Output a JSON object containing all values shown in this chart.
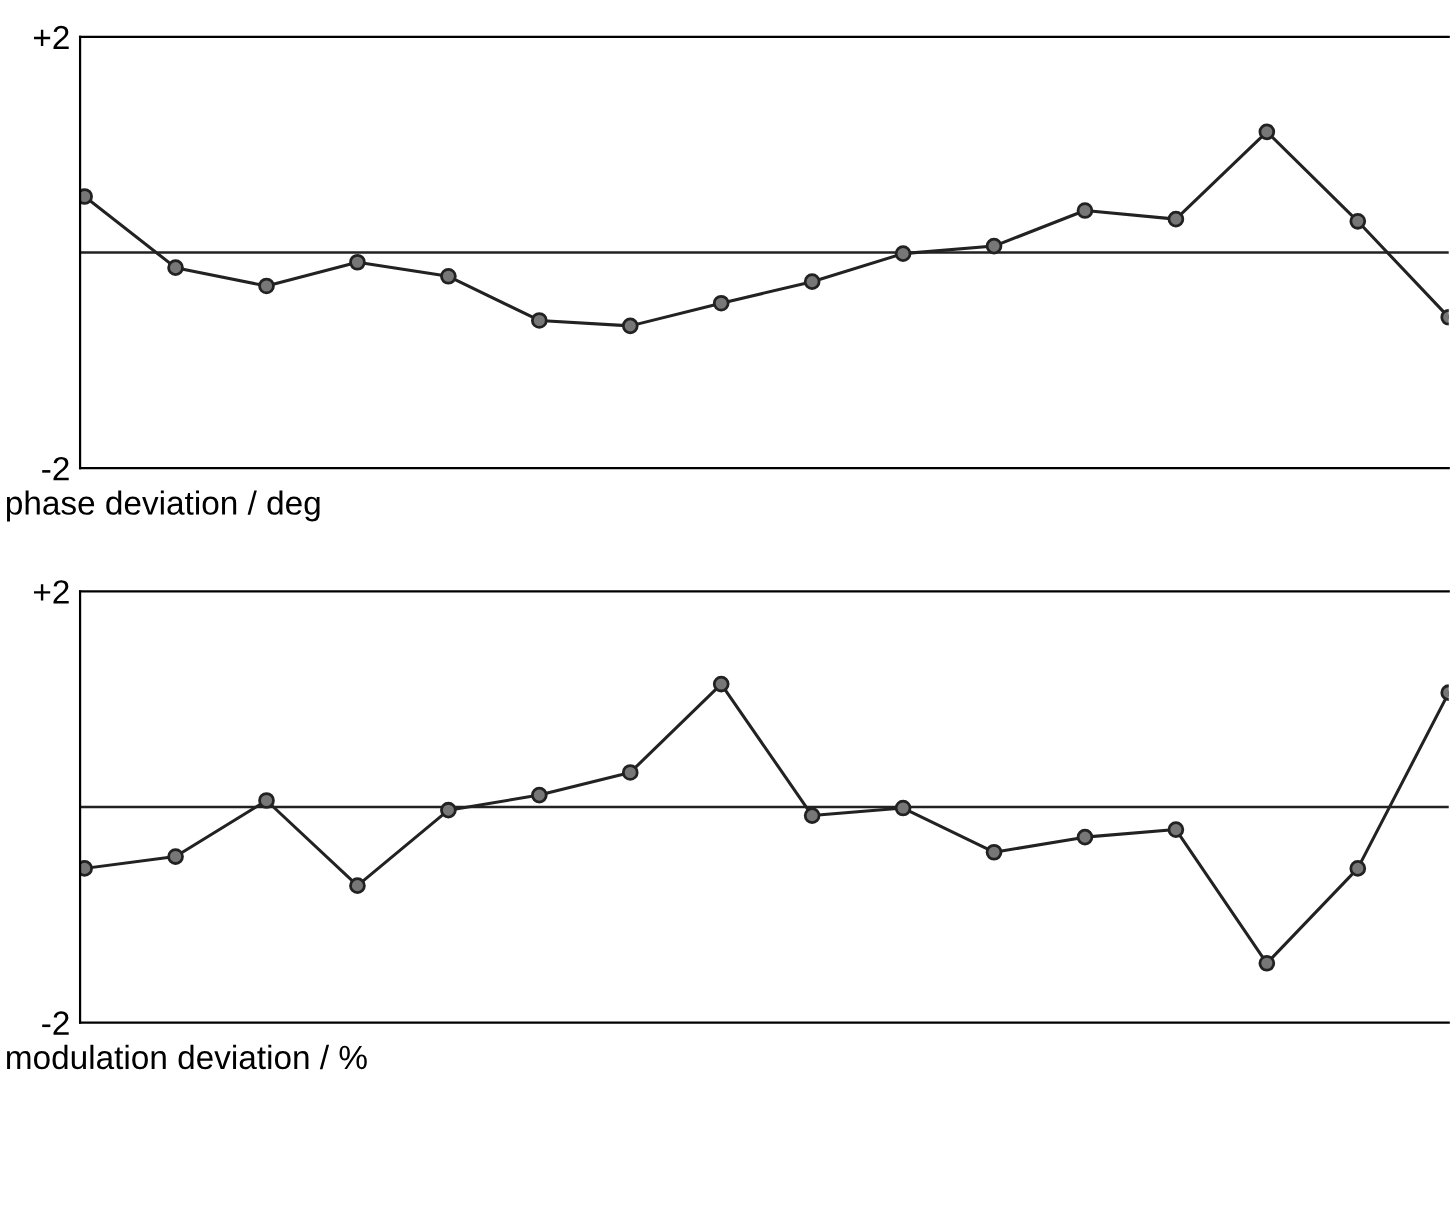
{
  "chart_data": [
    {
      "type": "line",
      "xlabel": "phase deviation / deg",
      "categories": [
        null,
        null,
        null,
        null,
        null,
        null,
        null,
        null,
        null,
        null,
        null,
        null,
        null,
        null,
        null,
        null
      ],
      "series": [
        {
          "color": "#222222",
          "values": [
            0.52,
            -0.14,
            -0.31,
            -0.09,
            -0.22,
            -0.63,
            -0.68,
            -0.47,
            -0.27,
            -0.01,
            0.06,
            0.39,
            0.31,
            1.12,
            0.29,
            -0.6
          ]
        }
      ],
      "ylim": [
        -2,
        2
      ],
      "yticks": [
        {
          "value": 2,
          "label": "+2"
        },
        -2
      ],
      "ref_lines": [
        {
          "axis": "y",
          "value": 0,
          "color": "#222222"
        }
      ],
      "tick_labels": "y",
      "grid": false,
      "legend": false,
      "marker": "circle",
      "line_style": "solid"
    },
    {
      "type": "line",
      "xlabel": "modulation deviation / %",
      "categories": [
        null,
        null,
        null,
        null,
        null,
        null,
        null,
        null,
        null,
        null,
        null,
        null,
        null,
        null,
        null,
        null
      ],
      "series": [
        {
          "color": "#222222",
          "values": [
            -0.57,
            -0.46,
            0.06,
            -0.73,
            -0.03,
            0.11,
            0.32,
            1.14,
            -0.08,
            -0.01,
            -0.42,
            -0.28,
            -0.21,
            -1.45,
            -0.57,
            1.06
          ]
        }
      ],
      "ylim": [
        -2,
        2
      ],
      "yticks": [
        {
          "value": 2,
          "label": "+2"
        },
        -2
      ],
      "ref_lines": [
        {
          "axis": "y",
          "value": 0,
          "color": "#222222"
        }
      ],
      "tick_labels": "y",
      "grid": false,
      "legend": false,
      "marker": "circle",
      "line_style": "solid"
    }
  ]
}
